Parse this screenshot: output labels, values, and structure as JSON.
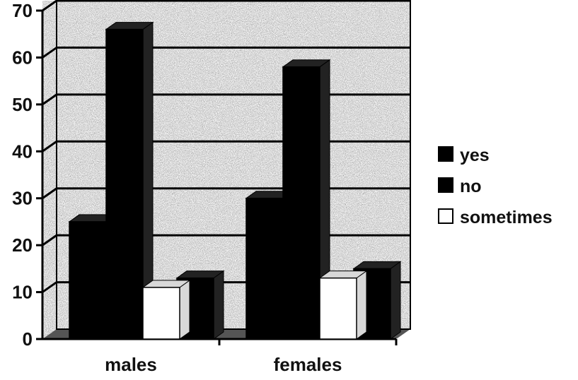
{
  "chart_data": {
    "type": "bar",
    "title": "",
    "xlabel": "",
    "ylabel": "",
    "categories": [
      "males",
      "females"
    ],
    "series": [
      {
        "name": "yes",
        "values": [
          25,
          30
        ],
        "color": "#000000"
      },
      {
        "name": "no",
        "values": [
          66,
          58
        ],
        "color": "#000000"
      },
      {
        "name": "sometimes",
        "values": [
          11,
          13
        ],
        "color": "#ffffff"
      }
    ],
    "back_series": {
      "values": [
        13,
        15
      ],
      "color": "#000000"
    },
    "ylim": [
      0,
      70
    ],
    "yticks": [
      "0",
      "10",
      "20",
      "30",
      "40",
      "50",
      "60",
      "70"
    ],
    "grid": true,
    "three_d": true,
    "background": "speckled-gray",
    "legend_position": "right"
  }
}
